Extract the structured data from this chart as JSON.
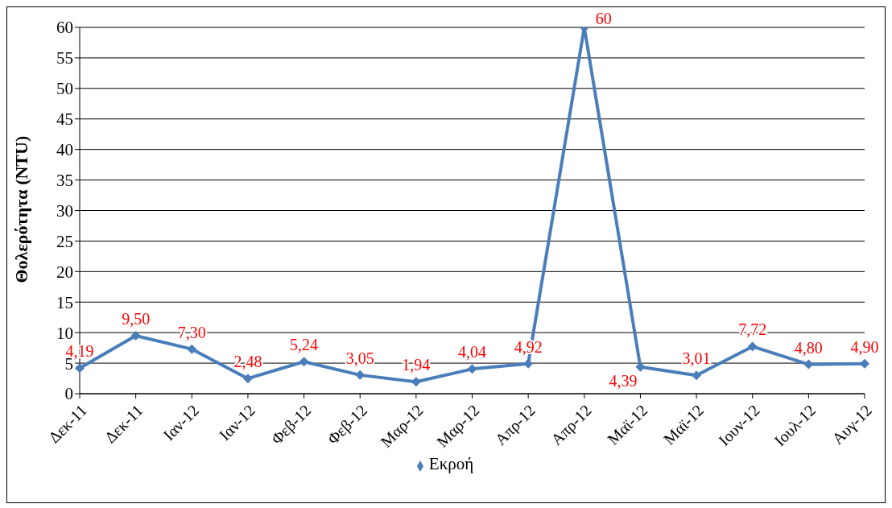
{
  "chart_data": {
    "type": "line",
    "ylabel": "Θολερότητα (NTU)",
    "categories": [
      "Δεκ-11",
      "Δεκ-11",
      "Ιαν-12",
      "Ιαν-12",
      "Φεβ-12",
      "Φεβ-12",
      "Μαρ-12",
      "Μαρ-12",
      "Απρ-12",
      "Απρ-12",
      "Μαϊ-12",
      "Μαϊ-12",
      "Ιουν-12",
      "Ιουλ-12",
      "Αυγ-12"
    ],
    "series": [
      {
        "name": "Εκροή",
        "color": "#4a7ebb",
        "values": [
          4.19,
          9.5,
          7.3,
          2.48,
          5.24,
          3.05,
          1.94,
          4.04,
          4.92,
          60,
          4.39,
          3.01,
          7.72,
          4.8,
          4.9
        ],
        "value_labels": [
          "4,19",
          "9,50",
          "7,30",
          "2,48",
          "5,24",
          "3,05",
          "1,94",
          "4,04",
          "4,92",
          "60",
          "4,39",
          "3,01",
          "7,72",
          "4,80",
          "4,90"
        ]
      }
    ],
    "ylim": [
      0,
      60
    ],
    "yticks": [
      0,
      5,
      10,
      15,
      20,
      25,
      30,
      35,
      40,
      45,
      50,
      55,
      60
    ],
    "grid": "y",
    "legend": "bottom",
    "marker": "diamond",
    "line_style": "solid"
  }
}
